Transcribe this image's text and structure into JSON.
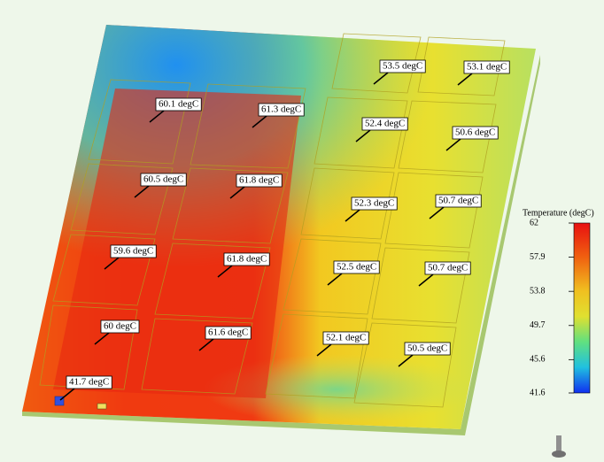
{
  "probes": [
    "53.5 degC",
    "53.1 degC",
    "60.1 degC",
    "61.3 degC",
    "52.4 degC",
    "50.6 degC",
    "60.5 degC",
    "61.8 degC",
    "52.3 degC",
    "50.7 degC",
    "59.6 degC",
    "61.8 degC",
    "52.5 degC",
    "50.7 degC",
    "60 degC",
    "61.6 degC",
    "52.1 degC",
    "50.5 degC",
    "41.7 degC"
  ],
  "colorbar": {
    "title": "Temperature (degC)",
    "ticks": [
      62,
      57.9,
      53.8,
      49.7,
      45.6,
      41.6
    ]
  }
}
